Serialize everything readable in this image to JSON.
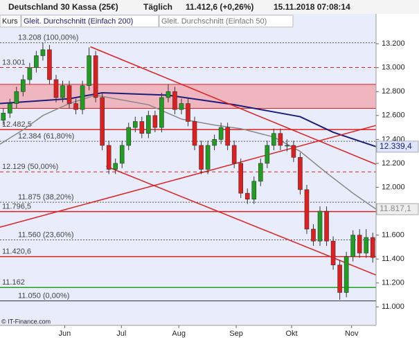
{
  "chart_data": {
    "type": "candlestick",
    "title": "Deutschland 30 Kassa (25€)",
    "period": "Täglich",
    "quote": "11.412,6 (+0,26%)",
    "timestamp": "15.11.2018 07:08:14",
    "legend": [
      "Kurs"
    ],
    "footer": "© IT-Finance.com",
    "up_color": "#1f9e1f",
    "down_color": "#e01e1e",
    "xlim": [
      -0.5,
      56.5
    ],
    "xticks": [
      {
        "value": 9.3,
        "label": "Jun"
      },
      {
        "value": 17.9,
        "label": "Jul"
      },
      {
        "value": 26.6,
        "label": "Aug"
      },
      {
        "value": 35.3,
        "label": "Sep"
      },
      {
        "value": 43.7,
        "label": "Okt"
      },
      {
        "value": 52.8,
        "label": "Nov"
      }
    ],
    "ylim": [
      10845,
      13450
    ],
    "yticks": [
      {
        "value": 11000,
        "label": "11.000"
      },
      {
        "value": 11200,
        "label": "11.200"
      },
      {
        "value": 11400,
        "label": "11.400"
      },
      {
        "value": 11600,
        "label": "11.600"
      },
      {
        "value": 11800,
        "label": "11.800"
      },
      {
        "value": 12000,
        "label": "12.000"
      },
      {
        "value": 12200,
        "label": "12.200"
      },
      {
        "value": 12400,
        "label": "12.400"
      },
      {
        "value": 12600,
        "label": "12.600"
      },
      {
        "value": 12800,
        "label": "12.800"
      },
      {
        "value": 13000,
        "label": "13.000"
      },
      {
        "value": 13200,
        "label": "13.200"
      }
    ],
    "candles": [
      [
        12560,
        12660,
        12520,
        12620
      ],
      [
        12620,
        12740,
        12580,
        12700
      ],
      [
        12700,
        12840,
        12660,
        12800
      ],
      [
        12800,
        12940,
        12760,
        12900
      ],
      [
        12900,
        13040,
        12860,
        13000
      ],
      [
        13000,
        13140,
        12960,
        13100
      ],
      [
        13100,
        13210,
        13060,
        13150
      ],
      [
        13150,
        13190,
        12860,
        12900
      ],
      [
        12900,
        12940,
        12710,
        12750
      ],
      [
        12750,
        12890,
        12710,
        12850
      ],
      [
        12850,
        12890,
        12660,
        12700
      ],
      [
        12700,
        12740,
        12610,
        12650
      ],
      [
        12650,
        12890,
        12610,
        12850
      ],
      [
        12850,
        13170,
        12810,
        13100
      ],
      [
        13100,
        13140,
        12710,
        12750
      ],
      [
        12750,
        12790,
        12310,
        12350
      ],
      [
        12350,
        12390,
        12110,
        12150
      ],
      [
        12150,
        12240,
        12110,
        12200
      ],
      [
        12200,
        12390,
        12160,
        12350
      ],
      [
        12350,
        12540,
        12310,
        12500
      ],
      [
        12500,
        12590,
        12460,
        12550
      ],
      [
        12550,
        12590,
        12410,
        12450
      ],
      [
        12450,
        12640,
        12410,
        12600
      ],
      [
        12600,
        12640,
        12460,
        12500
      ],
      [
        12500,
        12790,
        12460,
        12750
      ],
      [
        12750,
        12860,
        12710,
        12800
      ],
      [
        12800,
        12840,
        12610,
        12650
      ],
      [
        12650,
        12740,
        12610,
        12700
      ],
      [
        12700,
        12740,
        12510,
        12550
      ],
      [
        12550,
        12590,
        12310,
        12350
      ],
      [
        12350,
        12390,
        12110,
        12150
      ],
      [
        12150,
        12390,
        12110,
        12350
      ],
      [
        12350,
        12440,
        12310,
        12400
      ],
      [
        12400,
        12540,
        12360,
        12500
      ],
      [
        12500,
        12540,
        12310,
        12350
      ],
      [
        12350,
        12390,
        12160,
        12200
      ],
      [
        12200,
        12240,
        11910,
        11950
      ],
      [
        11950,
        11990,
        11860,
        11900
      ],
      [
        11900,
        12090,
        11860,
        12050
      ],
      [
        12050,
        12240,
        12010,
        12200
      ],
      [
        12200,
        12390,
        12160,
        12350
      ],
      [
        12350,
        12490,
        12310,
        12450
      ],
      [
        12450,
        12490,
        12310,
        12350
      ],
      [
        12350,
        12400,
        12300,
        12350
      ],
      [
        12350,
        12390,
        12210,
        12250
      ],
      [
        12250,
        12290,
        11940,
        11980
      ],
      [
        11980,
        12020,
        11610,
        11650
      ],
      [
        11650,
        11690,
        11510,
        11550
      ],
      [
        11550,
        11840,
        11510,
        11800
      ],
      [
        11800,
        11840,
        11510,
        11550
      ],
      [
        11550,
        11590,
        11310,
        11350
      ],
      [
        11350,
        11390,
        11060,
        11120
      ],
      [
        11120,
        11460,
        11080,
        11420
      ],
      [
        11420,
        11640,
        11380,
        11600
      ],
      [
        11600,
        11650,
        11410,
        11450
      ],
      [
        11450,
        11650,
        11410,
        11580
      ],
      [
        11580,
        11620,
        11370,
        11412.6
      ]
    ],
    "zone": {
      "from": 12660,
      "to": 12860,
      "color": "#f0a8b0"
    },
    "levels": [
      {
        "value": 13208,
        "label": "13.208 (100,00%)",
        "color": "#555555",
        "dash": "2,2"
      },
      {
        "value": 13001,
        "label": "13.001",
        "color": "#e01e1e",
        "dash": "5,4"
      },
      {
        "value": 12482.5,
        "label": "12.482,5",
        "color": "#e01e1e",
        "dash": "none"
      },
      {
        "value": 12384,
        "label": "12.384 (61,80%)",
        "color": "#555555",
        "dash": "2,2"
      },
      {
        "value": 12129,
        "label": "12.129 (50,00%)",
        "color": "#e01e1e",
        "dash": "5,4"
      },
      {
        "value": 11875,
        "label": "11.875 (38,20%)",
        "color": "#555555",
        "dash": "2,2"
      },
      {
        "value": 11796.5,
        "label": "11.796,5",
        "color": "#e01e1e",
        "dash": "none"
      },
      {
        "value": 11560,
        "label": "11.560 (23,60%)",
        "color": "#555555",
        "dash": "2,2"
      },
      {
        "value": 11420.6,
        "label": "11.420,6",
        "color": "#e01e1e",
        "dash": "none"
      },
      {
        "value": 11162,
        "label": "11.162",
        "color": "#1f9e1f",
        "dash": "none"
      },
      {
        "value": 11050,
        "label": "11.050 (0,00%)",
        "color": "#333333",
        "dash": "none"
      }
    ],
    "trendlines": [
      {
        "x": [
          13.2,
          56.5
        ],
        "y": [
          13175,
          12191
        ],
        "color": "#e01e1e"
      },
      {
        "x": [
          15.6,
          56.5
        ],
        "y": [
          12175,
          11266
        ],
        "color": "#e01e1e"
      },
      {
        "x": [
          -0.5,
          56.5
        ],
        "y": [
          11666,
          12517
        ],
        "color": "#e01e1e"
      }
    ],
    "series": [
      {
        "name": "Gleit. Durchschnitt (Einfach 200)",
        "color": "#1c1c7a",
        "x": [
          -0.5,
          10,
          15,
          20,
          25,
          30,
          35,
          40,
          45,
          50,
          56.5
        ],
        "values": [
          12700,
          12740,
          12790,
          12780,
          12770,
          12730,
          12690,
          12640,
          12590,
          12460,
          12339.4
        ],
        "end_label": {
          "value": 12339.4,
          "label": "12.339,4"
        },
        "end_bg": "#dfe6ff"
      },
      {
        "name": "Gleit. Durchschnitt (Einfach 50)",
        "color": "#888888",
        "x": [
          -0.5,
          3,
          6,
          10,
          14,
          18,
          22,
          27,
          32,
          36,
          41,
          45,
          49,
          53,
          56.5
        ],
        "values": [
          12360,
          12480,
          12600,
          12700,
          12770,
          12730,
          12690,
          12570,
          12520,
          12490,
          12420,
          12300,
          12120,
          11950,
          11817.1
        ],
        "end_label": {
          "value": 11817.1,
          "label": "11.817,1"
        },
        "end_bg": "#eeeeee"
      }
    ]
  }
}
